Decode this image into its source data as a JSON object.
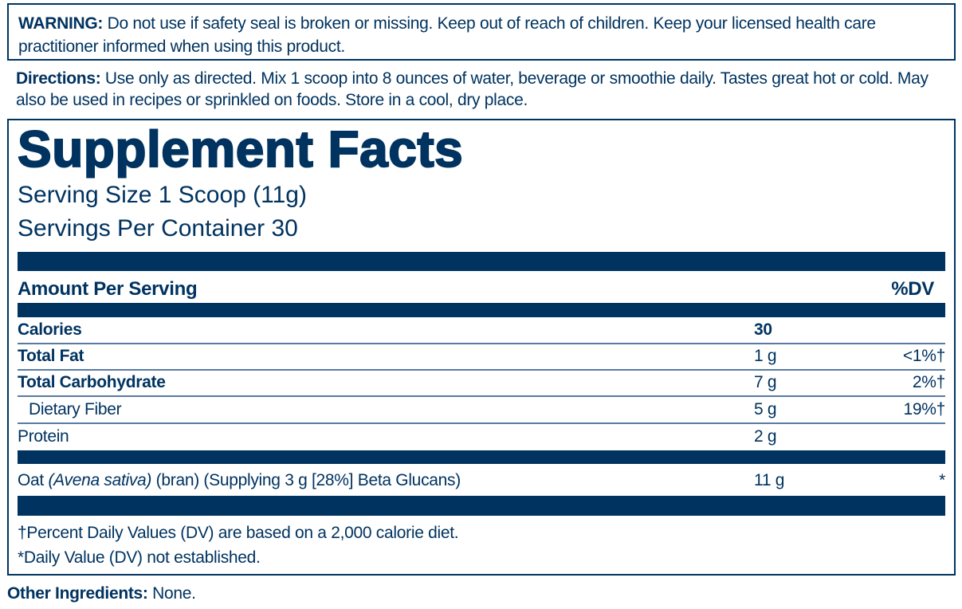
{
  "warning": {
    "label": "WARNING:",
    "text": " Do not use if safety seal is broken or missing. Keep out of reach of children. Keep your licensed health care practitioner informed when using this product."
  },
  "directions": {
    "label": "Directions:",
    "text": " Use only as directed. Mix 1 scoop into 8 ounces of water, beverage or smoothie daily. Tastes great hot or cold. May also be used in recipes or sprinkled on foods. Store in a cool, dry place."
  },
  "facts": {
    "title": "Supplement Facts",
    "serving_size": "Serving Size 1 Scoop (11g)",
    "servings_per_container": "Servings Per Container 30",
    "amount_header": "Amount Per Serving",
    "dv_header": "%DV",
    "rows": [
      {
        "name": "Calories",
        "amount": "30",
        "dv": ""
      },
      {
        "name": "Total Fat",
        "amount": "1 g",
        "dv": "<1%†"
      },
      {
        "name": "Total Carbohydrate",
        "amount": "7 g",
        "dv": "2%†"
      },
      {
        "name": "Dietary Fiber",
        "amount": "5 g",
        "dv": "19%†"
      },
      {
        "name": "Protein",
        "amount": "2 g",
        "dv": ""
      }
    ],
    "oat": {
      "pre": "Oat ",
      "italic": "(Avena sativa)",
      "post": " (bran) (Supplying 3 g [28%] Beta Glucans)",
      "amount": "11 g",
      "dv": "*"
    },
    "footnote1": "†Percent Daily Values (DV) are based on a 2,000 calorie diet.",
    "footnote2": "*Daily Value (DV) not established."
  },
  "other": {
    "label": "Other Ingredients:",
    "text": " None."
  },
  "colors": {
    "brand": "#003360"
  }
}
